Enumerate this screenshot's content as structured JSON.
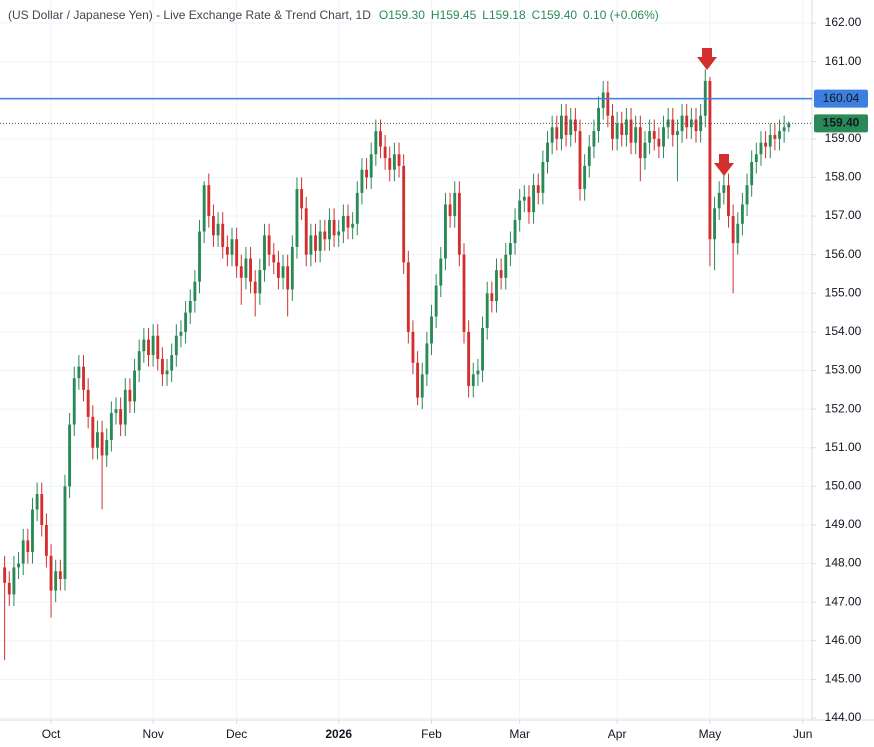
{
  "chart_data": {
    "type": "candlestick",
    "title": "(US Dollar / Japanese Yen) - Live Exchange Rate & Trend Chart, 1D",
    "header_values": [
      "O159.30",
      "H159.45",
      "L159.18",
      "C159.40",
      "0.10 (+0.06%)"
    ],
    "up_color": "#2a8a57",
    "down_color": "#d32f2f",
    "grid": true,
    "xlim": [
      -1,
      174
    ],
    "xticks": [
      {
        "value": 10,
        "label": "Oct"
      },
      {
        "value": 32,
        "label": "Nov"
      },
      {
        "value": 50,
        "label": "Dec"
      },
      {
        "value": 72,
        "label": "2026"
      },
      {
        "value": 92,
        "label": "Feb"
      },
      {
        "value": 111,
        "label": "Mar"
      },
      {
        "value": 132,
        "label": "Apr"
      },
      {
        "value": 152,
        "label": "May"
      },
      {
        "value": 172,
        "label": "Jun"
      }
    ],
    "ylim": [
      144,
      162
    ],
    "yticks": [
      {
        "value": 144,
        "label": "144.00"
      },
      {
        "value": 145,
        "label": "145.00"
      },
      {
        "value": 146,
        "label": "146.00"
      },
      {
        "value": 147,
        "label": "147.00"
      },
      {
        "value": 148,
        "label": "148.00"
      },
      {
        "value": 149,
        "label": "149.00"
      },
      {
        "value": 150,
        "label": "150.00"
      },
      {
        "value": 151,
        "label": "151.00"
      },
      {
        "value": 152,
        "label": "152.00"
      },
      {
        "value": 153,
        "label": "153.00"
      },
      {
        "value": 154,
        "label": "154.00"
      },
      {
        "value": 155,
        "label": "155.00"
      },
      {
        "value": 156,
        "label": "156.00"
      },
      {
        "value": 157,
        "label": "157.00"
      },
      {
        "value": 158,
        "label": "158.00"
      },
      {
        "value": 159,
        "label": "159.00"
      },
      {
        "value": 160,
        "label": "160.00"
      },
      {
        "value": 161,
        "label": "161.00"
      },
      {
        "value": 162,
        "label": "162.00"
      }
    ],
    "hline": {
      "value": 160.04,
      "label": "160.04",
      "color": "#3d7fe0"
    },
    "last_price": {
      "value": 159.4,
      "label": "159.40",
      "color": "#2a8a57"
    },
    "open": [
      147.9,
      147.5,
      147.2,
      147.9,
      148.0,
      148.6,
      148.3,
      149.4,
      149.8,
      149.0,
      148.2,
      147.3,
      147.8,
      147.6,
      150.0,
      151.6,
      152.8,
      153.1,
      152.5,
      151.8,
      151.0,
      151.4,
      150.8,
      151.2,
      151.9,
      152.0,
      151.6,
      152.5,
      152.2,
      153.0,
      153.5,
      153.8,
      153.4,
      153.9,
      153.3,
      152.9,
      153.0,
      153.4,
      153.9,
      154.0,
      154.5,
      154.8,
      155.3,
      156.6,
      157.8,
      157.0,
      156.5,
      156.8,
      156.2,
      156.0,
      156.4,
      155.7,
      155.4,
      155.9,
      155.3,
      155.0,
      155.6,
      156.5,
      156.0,
      155.8,
      155.4,
      155.7,
      155.1,
      156.2,
      157.7,
      157.2,
      156.0,
      156.5,
      156.1,
      156.6,
      156.4,
      156.9,
      156.5,
      156.6,
      157.0,
      156.7,
      156.8,
      157.6,
      158.2,
      158.0,
      158.6,
      159.2,
      158.8,
      158.5,
      158.2,
      158.6,
      158.3,
      155.8,
      154.0,
      153.2,
      152.3,
      152.9,
      153.7,
      154.4,
      155.2,
      155.9,
      157.3,
      157.0,
      157.6,
      156.0,
      154.0,
      152.6,
      152.9,
      153.0,
      154.1,
      155.0,
      154.8,
      155.6,
      155.4,
      156.0,
      156.3,
      156.9,
      157.4,
      157.5,
      157.1,
      157.8,
      157.6,
      158.4,
      158.9,
      159.3,
      159.0,
      159.6,
      159.1,
      159.5,
      159.2,
      157.7,
      158.3,
      158.8,
      159.2,
      159.8,
      160.2,
      159.6,
      159.0,
      159.4,
      159.1,
      159.5,
      158.9,
      159.3,
      158.5,
      158.9,
      159.2,
      159.0,
      158.8,
      159.3,
      159.5,
      159.1,
      159.2,
      159.6,
      159.3,
      159.5,
      159.2,
      159.6,
      160.5,
      156.4,
      157.2,
      157.6,
      157.8,
      157.0,
      156.3,
      156.8,
      157.3,
      157.8,
      158.4,
      158.6,
      158.9,
      158.8,
      159.1,
      159.0,
      159.2,
      159.3
    ],
    "high": [
      148.2,
      147.8,
      148.2,
      148.3,
      148.9,
      148.9,
      149.7,
      150.1,
      150.1,
      149.3,
      148.5,
      148.1,
      148.1,
      150.3,
      151.9,
      153.1,
      153.4,
      153.4,
      152.8,
      152.1,
      151.7,
      151.7,
      151.5,
      152.2,
      152.3,
      152.3,
      152.8,
      152.8,
      153.3,
      153.8,
      154.1,
      154.1,
      154.2,
      154.2,
      153.6,
      153.3,
      153.7,
      154.2,
      154.3,
      154.8,
      155.1,
      155.6,
      156.9,
      157.9,
      158.1,
      157.3,
      157.1,
      157.1,
      156.5,
      156.7,
      156.7,
      156.0,
      156.2,
      156.2,
      155.6,
      155.9,
      156.8,
      156.8,
      156.3,
      156.1,
      156.0,
      156.0,
      156.5,
      158.0,
      158.0,
      157.5,
      156.8,
      156.8,
      156.9,
      156.9,
      157.2,
      157.2,
      156.9,
      157.3,
      157.3,
      157.1,
      157.9,
      158.5,
      158.5,
      158.9,
      159.5,
      159.5,
      159.1,
      158.8,
      158.9,
      158.9,
      158.6,
      156.1,
      154.3,
      153.5,
      153.2,
      154.0,
      154.7,
      155.5,
      156.2,
      157.6,
      157.6,
      157.9,
      157.9,
      156.3,
      154.3,
      153.2,
      153.3,
      154.4,
      155.3,
      155.3,
      155.9,
      155.9,
      156.3,
      156.6,
      157.2,
      157.7,
      157.8,
      157.8,
      158.1,
      158.1,
      158.7,
      159.2,
      159.6,
      159.6,
      159.9,
      159.9,
      159.8,
      159.8,
      159.5,
      158.6,
      159.1,
      159.5,
      160.1,
      160.5,
      160.5,
      159.9,
      159.7,
      159.7,
      159.8,
      159.8,
      159.6,
      159.6,
      159.2,
      159.5,
      159.5,
      159.3,
      159.6,
      159.8,
      159.8,
      159.5,
      159.9,
      159.9,
      159.8,
      159.8,
      159.9,
      160.8,
      160.6,
      157.5,
      157.9,
      158.1,
      158.1,
      157.3,
      157.1,
      157.6,
      158.1,
      158.7,
      158.9,
      159.2,
      159.2,
      159.4,
      159.4,
      159.5,
      159.6,
      159.45
    ],
    "low": [
      145.5,
      146.9,
      146.9,
      147.6,
      147.7,
      148.0,
      148.0,
      149.1,
      148.7,
      147.9,
      146.6,
      147.0,
      147.3,
      147.3,
      149.7,
      151.3,
      152.5,
      152.2,
      151.5,
      150.7,
      150.7,
      149.4,
      150.5,
      150.9,
      151.6,
      151.3,
      151.3,
      151.9,
      151.9,
      152.7,
      153.2,
      153.1,
      153.1,
      153.0,
      152.6,
      152.6,
      152.7,
      153.1,
      153.6,
      153.7,
      154.2,
      154.5,
      155.0,
      156.3,
      156.7,
      156.2,
      156.2,
      155.9,
      155.7,
      155.7,
      155.4,
      154.7,
      155.1,
      155.0,
      154.4,
      154.7,
      155.3,
      155.7,
      155.5,
      155.1,
      155.1,
      154.4,
      154.8,
      155.9,
      156.9,
      155.7,
      155.7,
      155.8,
      155.8,
      156.1,
      156.1,
      156.2,
      156.2,
      156.3,
      156.4,
      156.4,
      156.5,
      157.3,
      157.7,
      157.7,
      158.3,
      158.5,
      158.2,
      157.9,
      157.9,
      158.0,
      155.5,
      153.7,
      152.9,
      152.1,
      152.0,
      152.6,
      153.4,
      154.1,
      154.9,
      155.6,
      156.7,
      156.7,
      155.7,
      153.7,
      152.3,
      152.3,
      152.6,
      152.7,
      153.8,
      154.5,
      154.5,
      155.1,
      155.1,
      155.7,
      156.0,
      156.6,
      157.1,
      156.8,
      156.8,
      157.3,
      157.3,
      158.1,
      158.6,
      158.7,
      158.7,
      158.8,
      158.8,
      158.9,
      157.4,
      157.4,
      158.0,
      158.5,
      158.9,
      159.5,
      159.3,
      158.7,
      158.7,
      158.8,
      158.8,
      158.6,
      158.6,
      157.9,
      158.2,
      158.6,
      158.7,
      158.5,
      158.5,
      159.0,
      158.8,
      157.9,
      158.9,
      159.0,
      159.0,
      158.9,
      158.9,
      159.3,
      155.7,
      155.6,
      156.9,
      157.3,
      156.7,
      155.0,
      156.0,
      156.5,
      157.0,
      157.5,
      158.1,
      158.3,
      158.5,
      158.5,
      158.7,
      158.7,
      158.9,
      159.18
    ],
    "close": [
      147.5,
      147.2,
      147.9,
      148.0,
      148.6,
      148.3,
      149.4,
      149.8,
      149.0,
      148.2,
      147.3,
      147.8,
      147.6,
      150.0,
      151.6,
      152.8,
      153.1,
      152.5,
      151.8,
      151.0,
      151.4,
      150.8,
      151.2,
      151.9,
      152.0,
      151.6,
      152.5,
      152.2,
      153.0,
      153.5,
      153.8,
      153.4,
      153.9,
      153.3,
      152.9,
      153.0,
      153.4,
      153.9,
      154.0,
      154.5,
      154.8,
      155.3,
      156.6,
      157.8,
      157.0,
      156.5,
      156.8,
      156.2,
      156.0,
      156.4,
      155.7,
      155.4,
      155.9,
      155.3,
      155.0,
      155.6,
      156.5,
      156.0,
      155.8,
      155.4,
      155.7,
      155.1,
      156.2,
      157.7,
      157.2,
      156.0,
      156.5,
      156.1,
      156.6,
      156.4,
      156.9,
      156.5,
      156.6,
      157.0,
      156.7,
      156.8,
      157.6,
      158.2,
      158.0,
      158.6,
      159.2,
      158.8,
      158.5,
      158.2,
      158.6,
      158.3,
      155.8,
      154.0,
      153.2,
      152.3,
      152.9,
      153.7,
      154.4,
      155.2,
      155.9,
      157.3,
      157.0,
      157.6,
      156.0,
      154.0,
      152.6,
      152.9,
      153.0,
      154.1,
      155.0,
      154.8,
      155.6,
      155.4,
      156.0,
      156.3,
      156.9,
      157.4,
      157.5,
      157.1,
      157.8,
      157.6,
      158.4,
      158.9,
      159.3,
      159.0,
      159.6,
      159.1,
      159.5,
      159.2,
      157.7,
      158.3,
      158.8,
      159.2,
      159.8,
      160.2,
      159.6,
      159.0,
      159.4,
      159.1,
      159.5,
      158.9,
      159.3,
      158.5,
      158.9,
      159.2,
      159.0,
      158.8,
      159.3,
      159.5,
      159.1,
      159.2,
      159.6,
      159.3,
      159.5,
      159.2,
      159.6,
      160.5,
      156.4,
      157.2,
      157.6,
      157.8,
      157.0,
      156.3,
      156.8,
      157.3,
      157.8,
      158.4,
      158.6,
      158.9,
      158.8,
      159.1,
      159.0,
      159.2,
      159.3,
      159.4
    ]
  }
}
